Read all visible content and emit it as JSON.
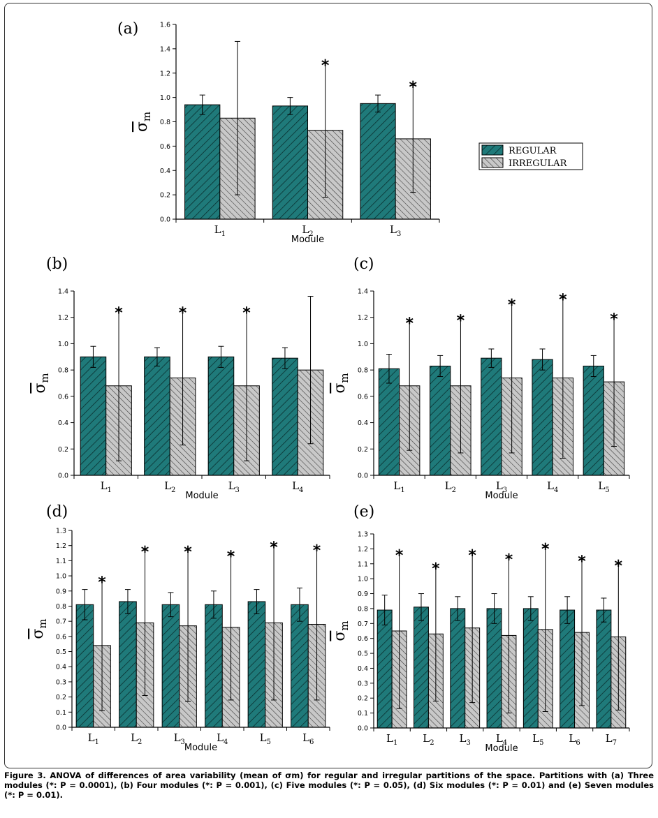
{
  "legend": {
    "regular": "REGULAR",
    "irregular": "IRREGULAR"
  },
  "colors": {
    "regular": "#1f7a7a",
    "irregular": "#c8c8c8",
    "axis": "#000000"
  },
  "caption": "Figure 3. ANOVA of differences of area variability (mean of σm) for regular and irregular partitions of the space. Partitions with (a) Three modules (*: P = 0.0001), (b) Four modules (*: P = 0.001), (c) Five modules (*: P = 0.05), (d) Six modules (*: P = 0.01) and (e) Seven modules (*: P = 0.01).",
  "chart_data": [
    {
      "type": "bar",
      "panel": "(a)",
      "xlabel": "Module",
      "ylabel": "σm",
      "categories": [
        "L1",
        "L2",
        "L3"
      ],
      "ylim": [
        0,
        1.6
      ],
      "yticks": [
        0.0,
        0.2,
        0.4,
        0.6,
        0.8,
        1.0,
        1.2,
        1.4,
        1.6
      ],
      "series": [
        {
          "name": "REGULAR",
          "values": [
            0.94,
            0.93,
            0.95
          ],
          "errors": [
            0.08,
            0.07,
            0.07
          ],
          "significant": [
            false,
            false,
            false
          ]
        },
        {
          "name": "IRREGULAR",
          "values": [
            0.83,
            0.73,
            0.66
          ],
          "errors": [
            0.63,
            0.55,
            0.44
          ],
          "significant": [
            false,
            true,
            true
          ]
        }
      ]
    },
    {
      "type": "bar",
      "panel": "(b)",
      "xlabel": "Module",
      "ylabel": "σm",
      "categories": [
        "L1",
        "L2",
        "L3",
        "L4"
      ],
      "ylim": [
        0,
        1.4
      ],
      "yticks": [
        0.0,
        0.2,
        0.4,
        0.6,
        0.8,
        1.0,
        1.2,
        1.4
      ],
      "series": [
        {
          "name": "REGULAR",
          "values": [
            0.9,
            0.9,
            0.9,
            0.89
          ],
          "errors": [
            0.08,
            0.07,
            0.08,
            0.08
          ],
          "significant": [
            false,
            false,
            false,
            false
          ]
        },
        {
          "name": "IRREGULAR",
          "values": [
            0.68,
            0.74,
            0.68,
            0.8
          ],
          "errors": [
            0.57,
            0.51,
            0.57,
            0.56
          ],
          "significant": [
            true,
            true,
            true,
            false
          ]
        }
      ]
    },
    {
      "type": "bar",
      "panel": "(c)",
      "xlabel": "Module",
      "ylabel": "σm",
      "categories": [
        "L1",
        "L2",
        "L3",
        "L4",
        "L5"
      ],
      "ylim": [
        0,
        1.4
      ],
      "yticks": [
        0.0,
        0.2,
        0.4,
        0.6,
        0.8,
        1.0,
        1.2,
        1.4
      ],
      "series": [
        {
          "name": "REGULAR",
          "values": [
            0.81,
            0.83,
            0.89,
            0.88,
            0.83
          ],
          "errors": [
            0.11,
            0.08,
            0.07,
            0.08,
            0.08
          ],
          "significant": [
            false,
            false,
            false,
            false,
            false
          ]
        },
        {
          "name": "IRREGULAR",
          "values": [
            0.68,
            0.68,
            0.74,
            0.74,
            0.71
          ],
          "errors": [
            0.49,
            0.51,
            0.57,
            0.61,
            0.49
          ],
          "significant": [
            true,
            true,
            true,
            true,
            true
          ]
        }
      ]
    },
    {
      "type": "bar",
      "panel": "(d)",
      "xlabel": "Module",
      "ylabel": "σm",
      "categories": [
        "L1",
        "L2",
        "L3",
        "L4",
        "L5",
        "L6"
      ],
      "ylim": [
        0,
        1.3
      ],
      "yticks": [
        0.0,
        0.1,
        0.2,
        0.3,
        0.4,
        0.5,
        0.6,
        0.7,
        0.8,
        0.9,
        1.0,
        1.1,
        1.2,
        1.3
      ],
      "series": [
        {
          "name": "REGULAR",
          "values": [
            0.81,
            0.83,
            0.81,
            0.81,
            0.83,
            0.81
          ],
          "errors": [
            0.1,
            0.08,
            0.08,
            0.09,
            0.08,
            0.11
          ],
          "significant": [
            false,
            false,
            false,
            false,
            false,
            false
          ]
        },
        {
          "name": "IRREGULAR",
          "values": [
            0.54,
            0.69,
            0.67,
            0.66,
            0.69,
            0.68
          ],
          "errors": [
            0.43,
            0.48,
            0.5,
            0.48,
            0.51,
            0.5
          ],
          "significant": [
            true,
            true,
            true,
            true,
            true,
            true
          ]
        }
      ]
    },
    {
      "type": "bar",
      "panel": "(e)",
      "xlabel": "Module",
      "ylabel": "σm",
      "categories": [
        "L1",
        "L2",
        "L3",
        "L4",
        "L5",
        "L6",
        "L7"
      ],
      "ylim": [
        0,
        1.3
      ],
      "yticks": [
        0.0,
        0.1,
        0.2,
        0.3,
        0.4,
        0.5,
        0.6,
        0.7,
        0.8,
        0.9,
        1.0,
        1.1,
        1.2,
        1.3
      ],
      "series": [
        {
          "name": "REGULAR",
          "values": [
            0.79,
            0.81,
            0.8,
            0.8,
            0.8,
            0.79,
            0.79
          ],
          "errors": [
            0.1,
            0.09,
            0.08,
            0.1,
            0.08,
            0.09,
            0.08
          ],
          "significant": [
            false,
            false,
            false,
            false,
            false,
            false,
            false
          ]
        },
        {
          "name": "IRREGULAR",
          "values": [
            0.65,
            0.63,
            0.67,
            0.62,
            0.66,
            0.64,
            0.61
          ],
          "errors": [
            0.52,
            0.45,
            0.5,
            0.52,
            0.55,
            0.49,
            0.49
          ],
          "significant": [
            true,
            true,
            true,
            true,
            true,
            true,
            true
          ]
        }
      ]
    }
  ]
}
